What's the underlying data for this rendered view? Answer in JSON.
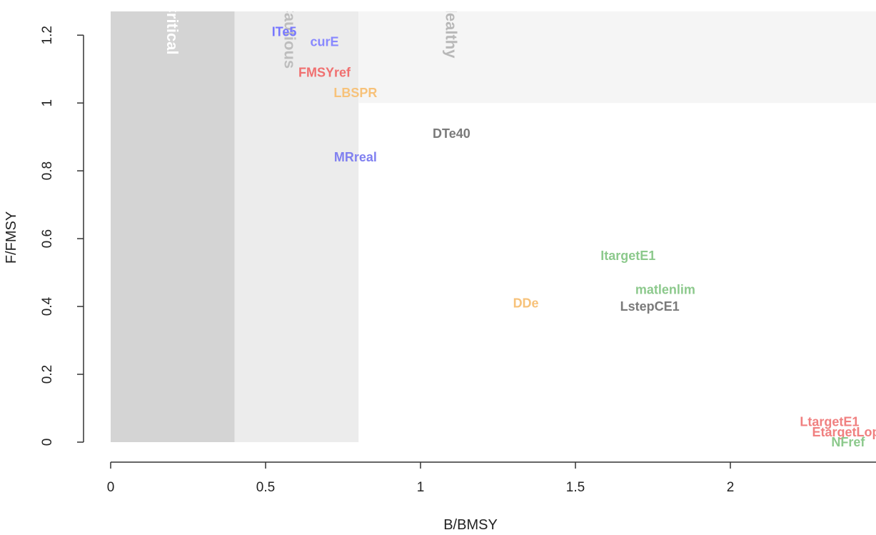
{
  "chart_data": {
    "type": "scatter",
    "title": "",
    "xlabel": "B/BMSY",
    "ylabel": "F/FMSY",
    "xlim": [
      0,
      2.47
    ],
    "ylim": [
      0,
      1.27
    ],
    "x_ticks": [
      0,
      0.5,
      1,
      1.5,
      2
    ],
    "x_tick_labels": [
      "0",
      "0.5",
      "1",
      "1.5",
      "2"
    ],
    "y_ticks": [
      0,
      0.2,
      0.4,
      0.6,
      0.8,
      1,
      1.2
    ],
    "y_tick_labels": [
      "0",
      "0.2",
      "0.4",
      "0.6",
      "0.8",
      "1",
      "1.2"
    ],
    "grid": false,
    "zones": [
      {
        "label": "Critical",
        "x_range": [
          0,
          0.4
        ],
        "y_range": [
          0,
          1.27
        ],
        "color": "#d4d4d4",
        "label_color": "#ffffff",
        "label_x": 0.2
      },
      {
        "label": "Cautious",
        "x_range": [
          0.4,
          0.8
        ],
        "y_range": [
          0,
          1.27
        ],
        "color": "#ececec",
        "label_color": "#bdbdbd",
        "label_x": 0.58
      },
      {
        "label": "Healthy",
        "x_range": [
          0.8,
          2.47
        ],
        "y_range": [
          1,
          1.27
        ],
        "color": "#f5f5f5",
        "label_color": "#b8b8b8",
        "label_x": 1.1
      }
    ],
    "points": [
      {
        "label": "ITe5",
        "x": 0.56,
        "y": 1.21,
        "color": "#7777ff"
      },
      {
        "label": "curE",
        "x": 0.69,
        "y": 1.18,
        "color": "#8888ff"
      },
      {
        "label": "FMSYref",
        "x": 0.69,
        "y": 1.09,
        "color": "#f07070"
      },
      {
        "label": "LBSPR",
        "x": 0.79,
        "y": 1.03,
        "color": "#f7c27a"
      },
      {
        "label": "DTe40",
        "x": 1.1,
        "y": 0.91,
        "color": "#7a7a7a"
      },
      {
        "label": "MRreal",
        "x": 0.79,
        "y": 0.84,
        "color": "#8080f0"
      },
      {
        "label": "ItargetE1",
        "x": 1.67,
        "y": 0.55,
        "color": "#8cc98c"
      },
      {
        "label": "matlenlim",
        "x": 1.79,
        "y": 0.45,
        "color": "#8cc98c"
      },
      {
        "label": "DDe",
        "x": 1.34,
        "y": 0.41,
        "color": "#f7c27a"
      },
      {
        "label": "LstepCE1",
        "x": 1.74,
        "y": 0.4,
        "color": "#7a7a7a"
      },
      {
        "label": "LtargetE1",
        "x": 2.32,
        "y": 0.06,
        "color": "#f08080"
      },
      {
        "label": "EtargetLopt",
        "x": 2.38,
        "y": 0.03,
        "color": "#f08080"
      },
      {
        "label": "NFref",
        "x": 2.38,
        "y": 0.0,
        "color": "#8cc98c"
      }
    ]
  }
}
